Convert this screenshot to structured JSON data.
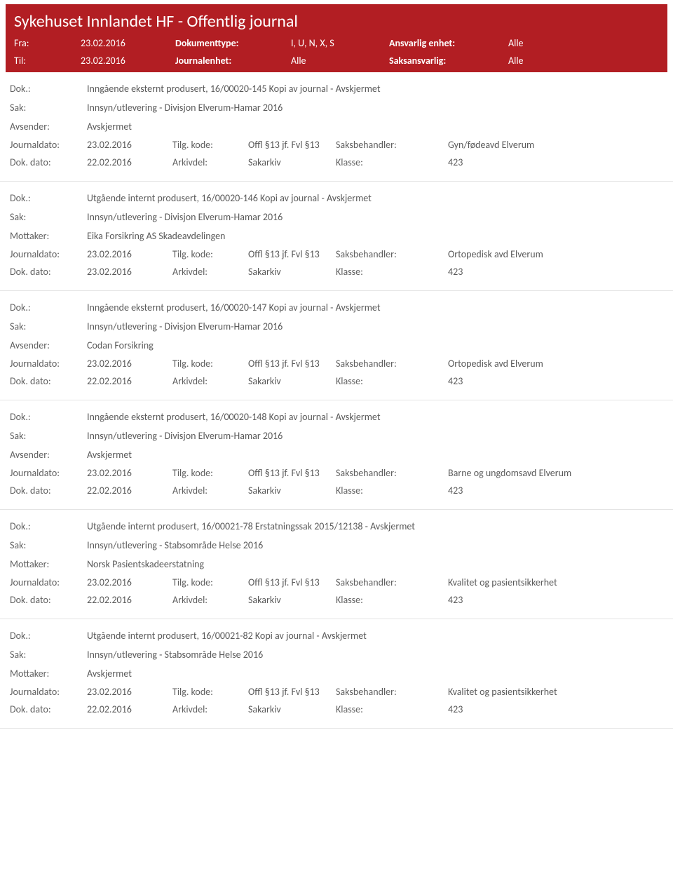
{
  "header": {
    "title": "Sykehuset Innlandet HF - Offentlig journal",
    "row1": {
      "lbl1": "Fra:",
      "val1": "23.02.2016",
      "lbl2": "Dokumenttype:",
      "val2": "I, U, N, X, S",
      "lbl3": "Ansvarlig enhet:",
      "val3": "Alle"
    },
    "row2": {
      "lbl1": "Til:",
      "val1": "23.02.2016",
      "lbl2": "Journalenhet:",
      "val2": "Alle",
      "lbl3": "Saksansvarlig:",
      "val3": "Alle"
    }
  },
  "labels": {
    "dok": "Dok.:",
    "sak": "Sak:",
    "avsender": "Avsender:",
    "mottaker": "Mottaker:",
    "journaldato": "Journaldato:",
    "tilg": "Tilg. kode:",
    "saksbeh": "Saksbehandler:",
    "dokdato": "Dok. dato:",
    "arkivdel": "Arkivdel:",
    "klasse": "Klasse:"
  },
  "entries": [
    {
      "dok": "Inngående eksternt produsert, 16/00020-145 Kopi av journal - Avskjermet",
      "sak": "Innsyn/utlevering - Divisjon Elverum-Hamar 2016",
      "partyLabel": "Avsender:",
      "party": "Avskjermet",
      "jdato": "23.02.2016",
      "tilg": "Offl §13 jf. Fvl §13",
      "saksbeh": "Gyn/fødeavd Elverum",
      "ddato": "22.02.2016",
      "arkiv": "Sakarkiv",
      "klasse": "423"
    },
    {
      "dok": "Utgående internt produsert, 16/00020-146 Kopi av journal - Avskjermet",
      "sak": "Innsyn/utlevering - Divisjon Elverum-Hamar 2016",
      "partyLabel": "Mottaker:",
      "party": "Eika Forsikring AS Skadeavdelingen",
      "jdato": "23.02.2016",
      "tilg": "Offl §13 jf. Fvl §13",
      "saksbeh": "Ortopedisk avd Elverum",
      "ddato": "23.02.2016",
      "arkiv": "Sakarkiv",
      "klasse": "423"
    },
    {
      "dok": "Inngående eksternt produsert, 16/00020-147 Kopi av journal - Avskjermet",
      "sak": "Innsyn/utlevering - Divisjon Elverum-Hamar 2016",
      "partyLabel": "Avsender:",
      "party": "Codan Forsikring",
      "jdato": "23.02.2016",
      "tilg": "Offl §13 jf. Fvl §13",
      "saksbeh": "Ortopedisk avd Elverum",
      "ddato": "22.02.2016",
      "arkiv": "Sakarkiv",
      "klasse": "423"
    },
    {
      "dok": "Inngående eksternt produsert, 16/00020-148 Kopi av journal - Avskjermet",
      "sak": "Innsyn/utlevering - Divisjon Elverum-Hamar 2016",
      "partyLabel": "Avsender:",
      "party": "Avskjermet",
      "jdato": "23.02.2016",
      "tilg": "Offl §13 jf. Fvl §13",
      "saksbeh": "Barne og ungdomsavd Elverum",
      "ddato": "22.02.2016",
      "arkiv": "Sakarkiv",
      "klasse": "423"
    },
    {
      "dok": "Utgående internt produsert, 16/00021-78 Erstatningssak 2015/12138 - Avskjermet",
      "sak": "Innsyn/utlevering - Stabsområde Helse 2016",
      "partyLabel": "Mottaker:",
      "party": "Norsk Pasientskadeerstatning",
      "jdato": "23.02.2016",
      "tilg": "Offl §13 jf. Fvl §13",
      "saksbeh": "Kvalitet og pasientsikkerhet",
      "ddato": "22.02.2016",
      "arkiv": "Sakarkiv",
      "klasse": "423"
    },
    {
      "dok": "Utgående internt produsert, 16/00021-82 Kopi av journal - Avskjermet",
      "sak": "Innsyn/utlevering - Stabsområde Helse 2016",
      "partyLabel": "Mottaker:",
      "party": "Avskjermet",
      "jdato": "23.02.2016",
      "tilg": "Offl §13 jf. Fvl §13",
      "saksbeh": "Kvalitet og pasientsikkerhet",
      "ddato": "22.02.2016",
      "arkiv": "Sakarkiv",
      "klasse": "423"
    }
  ]
}
